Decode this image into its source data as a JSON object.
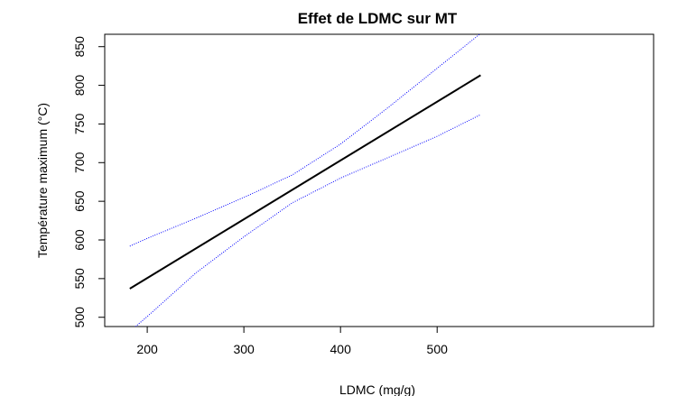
{
  "chart_data": {
    "type": "line",
    "title": "Effet de LDMC sur MT",
    "xlabel": "LDMC (mg/g)",
    "ylabel": "Température maximum (°C)",
    "xlim": [
      156,
      724
    ],
    "ylim": [
      488,
      866
    ],
    "xticks": [
      "200",
      "300",
      "400",
      "500"
    ],
    "yticks": [
      "500",
      "550",
      "600",
      "650",
      "700",
      "750",
      "800",
      "850"
    ],
    "grid": false,
    "series": [
      {
        "role": "fit",
        "color": "#000000",
        "style": "solid",
        "x": [
          182,
          545
        ],
        "y": [
          537,
          813
        ]
      },
      {
        "role": "upper-ci",
        "color": "#0000ff",
        "style": "dotted",
        "x": [
          182,
          200,
          250,
          300,
          350,
          400,
          450,
          500,
          545
        ],
        "y": [
          592,
          602,
          628,
          655,
          684,
          724,
          772,
          822,
          867
        ]
      },
      {
        "role": "lower-ci",
        "color": "#0000ff",
        "style": "dotted",
        "x": [
          186,
          200,
          250,
          300,
          350,
          400,
          450,
          500,
          545
        ],
        "y": [
          486,
          501,
          557,
          604,
          648,
          680,
          707,
          734,
          762
        ]
      }
    ]
  }
}
